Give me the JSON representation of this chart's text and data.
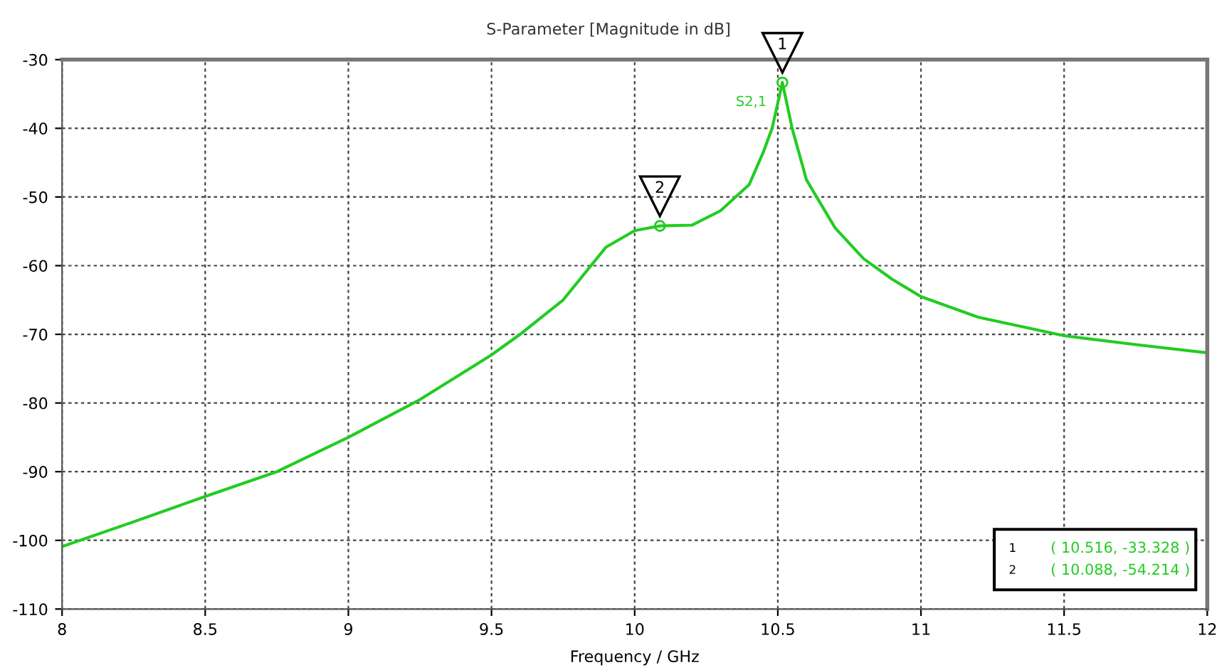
{
  "chart_data": {
    "type": "line",
    "title": "S-Parameter [Magnitude in dB]",
    "xlabel": "Frequency / GHz",
    "series": [
      {
        "name": "S2,1",
        "color": "#22cc22",
        "x": [
          8,
          8.25,
          8.5,
          8.75,
          9,
          9.25,
          9.5,
          9.6,
          9.75,
          9.9,
          10.0,
          10.088,
          10.2,
          10.3,
          10.4,
          10.45,
          10.48,
          10.516,
          10.55,
          10.6,
          10.7,
          10.8,
          10.9,
          11.0,
          11.2,
          11.5,
          11.75,
          12.0
        ],
        "values": [
          -100.9,
          -97.3,
          -93.6,
          -90,
          -85,
          -79.5,
          -73,
          -70,
          -65,
          -57.3,
          -54.9,
          -54.214,
          -54.1,
          -52,
          -48.2,
          -43.4,
          -40,
          -33.328,
          -40,
          -47.5,
          -54.5,
          -59,
          -62,
          -64.5,
          -67.5,
          -70.2,
          -71.5,
          -72.7
        ]
      }
    ],
    "xlim": [
      8,
      12
    ],
    "xticks": [
      8,
      8.5,
      9,
      9.5,
      10,
      10.5,
      11,
      11.5,
      12
    ],
    "ylim": [
      -110,
      -30
    ],
    "yticks": [
      -110,
      -100,
      -90,
      -80,
      -70,
      -60,
      -50,
      -40,
      -30
    ],
    "grid": true,
    "legend": false,
    "marker": "none",
    "line_style": "solid",
    "annotations": [
      {
        "text": "1",
        "x": 10.516,
        "y": -33.328
      },
      {
        "text": "2",
        "x": 10.088,
        "y": -54.214
      },
      "( 10.516, -33.328 )",
      "( 10.088, -54.214 )"
    ]
  }
}
